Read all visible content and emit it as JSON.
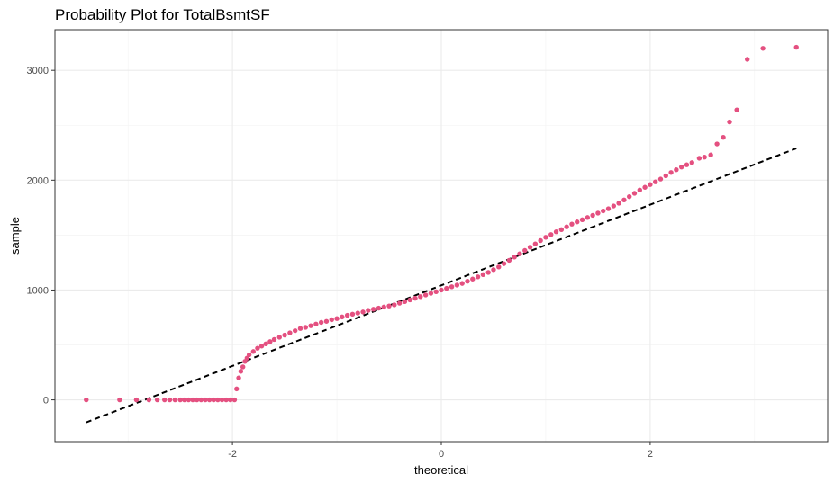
{
  "chart_data": {
    "type": "scatter",
    "title": "Probability Plot for TotalBsmtSF",
    "xlabel": "theoretical",
    "ylabel": "sample",
    "xlim": [
      -3.7,
      3.7
    ],
    "ylim": [
      -380,
      3370
    ],
    "x_ticks": [
      -2,
      0,
      2
    ],
    "x_tick_labels": [
      "-2",
      "0",
      "2"
    ],
    "y_ticks": [
      0,
      1000,
      2000,
      3000
    ],
    "y_tick_labels": [
      "0",
      "1000",
      "2000",
      "3000"
    ],
    "grid": true,
    "legend": "none",
    "point_color": "#E45080",
    "line_color": "#000000",
    "reference_line": {
      "style": "dashed",
      "x": [
        -3.4,
        3.4
      ],
      "y": [
        -205,
        2290
      ]
    },
    "points": {
      "x": [
        -3.4,
        -3.08,
        -2.92,
        -2.8,
        -2.72,
        -2.65,
        -2.6,
        -2.55,
        -2.5,
        -2.46,
        -2.42,
        -2.38,
        -2.34,
        -2.3,
        -2.26,
        -2.22,
        -2.18,
        -2.14,
        -2.1,
        -2.06,
        -2.02,
        -1.98,
        -1.96,
        -1.94,
        -1.92,
        -1.9,
        -1.88,
        -1.86,
        -1.84,
        -1.8,
        -1.76,
        -1.72,
        -1.68,
        -1.64,
        -1.6,
        -1.55,
        -1.5,
        -1.45,
        -1.4,
        -1.35,
        -1.3,
        -1.25,
        -1.2,
        -1.15,
        -1.1,
        -1.05,
        -1.0,
        -0.95,
        -0.9,
        -0.85,
        -0.8,
        -0.75,
        -0.7,
        -0.65,
        -0.6,
        -0.55,
        -0.5,
        -0.45,
        -0.4,
        -0.35,
        -0.3,
        -0.25,
        -0.2,
        -0.15,
        -0.1,
        -0.05,
        0.0,
        0.05,
        0.1,
        0.15,
        0.2,
        0.25,
        0.3,
        0.35,
        0.4,
        0.45,
        0.5,
        0.55,
        0.6,
        0.65,
        0.7,
        0.75,
        0.8,
        0.85,
        0.9,
        0.95,
        1.0,
        1.05,
        1.1,
        1.15,
        1.2,
        1.25,
        1.3,
        1.35,
        1.4,
        1.45,
        1.5,
        1.55,
        1.6,
        1.65,
        1.7,
        1.75,
        1.8,
        1.85,
        1.9,
        1.95,
        2.0,
        2.05,
        2.1,
        2.15,
        2.2,
        2.25,
        2.3,
        2.35,
        2.4,
        2.47,
        2.52,
        2.58,
        2.64,
        2.7,
        2.76,
        2.83,
        2.93,
        3.08,
        3.4
      ],
      "y": [
        0,
        0,
        0,
        0,
        0,
        0,
        0,
        0,
        0,
        0,
        0,
        0,
        0,
        0,
        0,
        0,
        0,
        0,
        0,
        0,
        0,
        0,
        100,
        200,
        260,
        300,
        350,
        380,
        410,
        440,
        470,
        490,
        510,
        530,
        550,
        570,
        590,
        610,
        630,
        650,
        660,
        675,
        690,
        705,
        715,
        730,
        740,
        755,
        770,
        780,
        790,
        800,
        815,
        825,
        835,
        845,
        855,
        865,
        880,
        895,
        910,
        925,
        940,
        955,
        970,
        985,
        1000,
        1015,
        1030,
        1045,
        1060,
        1080,
        1100,
        1120,
        1140,
        1160,
        1185,
        1210,
        1240,
        1270,
        1300,
        1330,
        1360,
        1390,
        1420,
        1450,
        1480,
        1505,
        1530,
        1550,
        1575,
        1600,
        1620,
        1640,
        1660,
        1680,
        1700,
        1720,
        1740,
        1765,
        1790,
        1820,
        1850,
        1880,
        1910,
        1935,
        1960,
        1985,
        2010,
        2040,
        2070,
        2095,
        2120,
        2140,
        2160,
        2200,
        2210,
        2230,
        2330,
        2390,
        2530,
        2640,
        3100,
        3200,
        3210
      ]
    }
  }
}
